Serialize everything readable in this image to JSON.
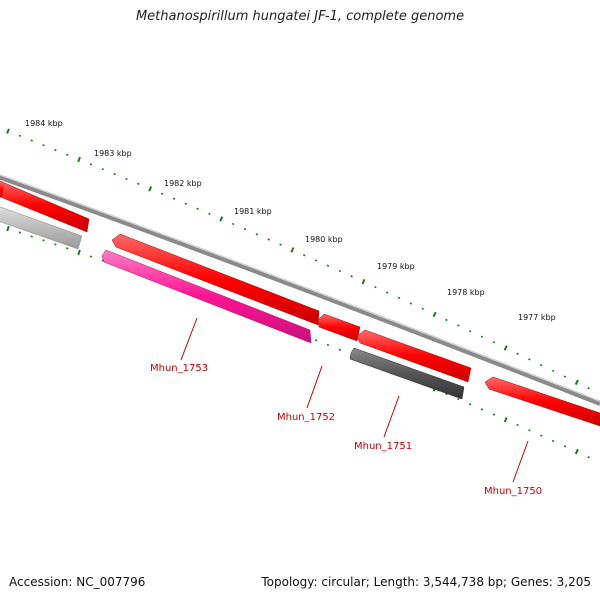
{
  "title": "Methanospirillum hungatei JF-1, complete genome",
  "accession_text": "Accession: NC_007796",
  "topology_text": "Topology: circular; Length: 3,544,738 bp; Genes: 3,205",
  "colors": {
    "backbone": "#8a8a8a",
    "forward_gene": "#ff0000",
    "reverse_gene_light": "#bbbbbb",
    "reverse_gene_dark": "#555555",
    "highlight_gene": "#ff1493",
    "tick": "#1a7a1a",
    "label": "#cc0000"
  },
  "ruler": {
    "labels": [
      "1984 kbp",
      "1983 kbp",
      "1982 kbp",
      "1981 kbp",
      "1980 kbp",
      "1979 kbp",
      "1978 kbp",
      "1977 kbp"
    ]
  },
  "genes": [
    {
      "label": "",
      "strand": "forward",
      "color": "red"
    },
    {
      "label": "",
      "strand": "reverse",
      "color": "light-gray"
    },
    {
      "label": "",
      "strand": "forward",
      "color": "red"
    },
    {
      "label": "Mhun_1753",
      "strand": "reverse",
      "color": "pink"
    },
    {
      "label": "Mhun_1752",
      "strand": "forward",
      "color": "red"
    },
    {
      "label": "",
      "strand": "forward",
      "color": "red"
    },
    {
      "label": "Mhun_1751",
      "strand": "reverse",
      "color": "dark-gray"
    },
    {
      "label": "Mhun_1750",
      "strand": "forward",
      "color": "red"
    }
  ]
}
